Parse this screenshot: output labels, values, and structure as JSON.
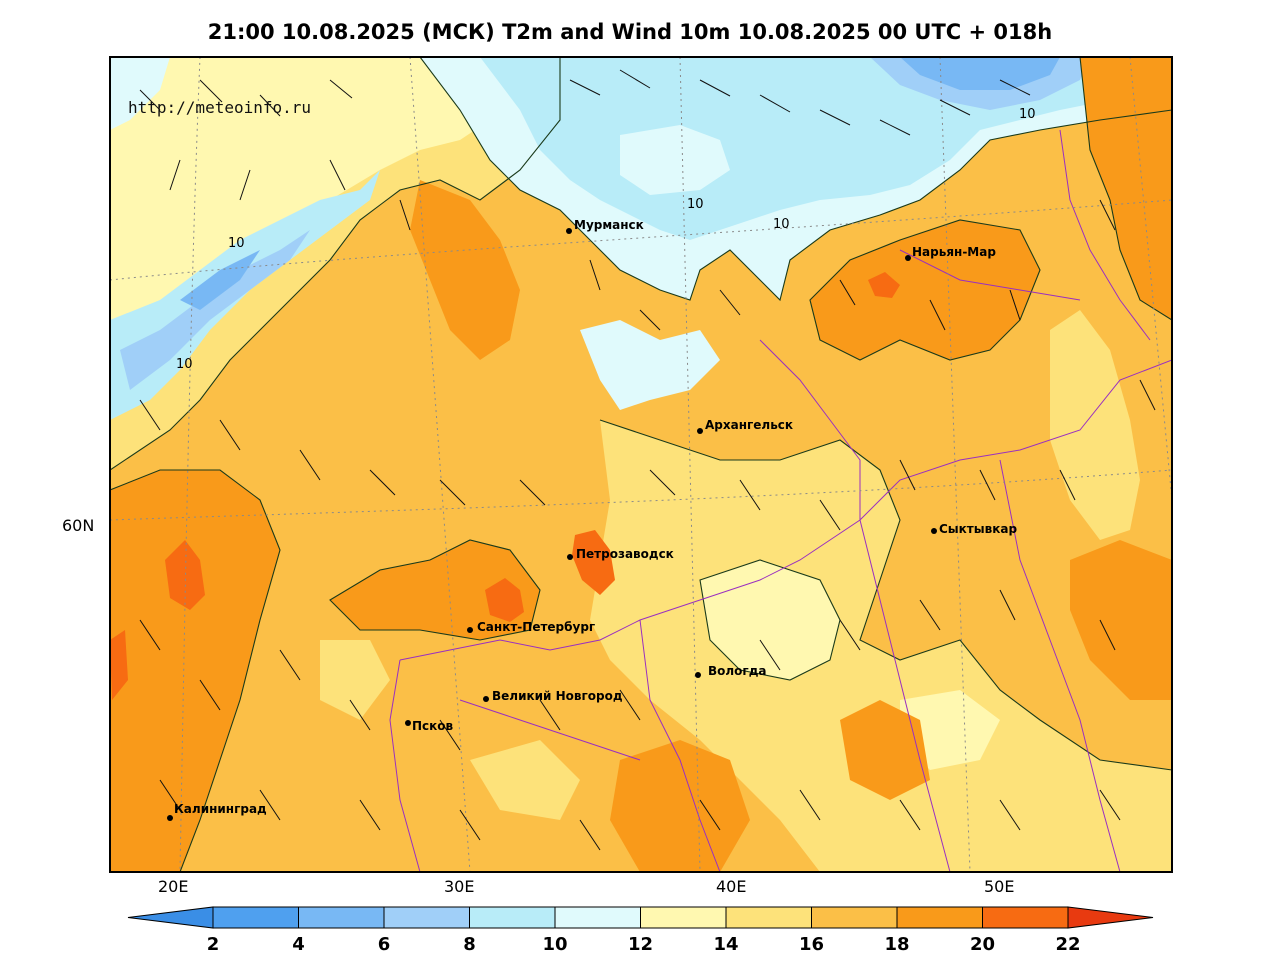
{
  "title": "21:00 10.08.2025 (МСК) T2m and Wind 10m 10.08.2025 00 UTC + 018h",
  "watermark": "http://meteoinfo.ru",
  "axes": {
    "lat_labels": [
      "60N"
    ],
    "lon_labels": [
      "20E",
      "30E",
      "40E",
      "50E"
    ]
  },
  "contour_labels": [
    "10",
    "10",
    "10",
    "10",
    "10"
  ],
  "cities": [
    {
      "name": "Мурманск"
    },
    {
      "name": "Нарьян-Мар"
    },
    {
      "name": "Архангельск"
    },
    {
      "name": "Сыктывкар"
    },
    {
      "name": "Петрозаводск"
    },
    {
      "name": "Санкт-Петербург"
    },
    {
      "name": "Вологда"
    },
    {
      "name": "Великий Новгород"
    },
    {
      "name": "Псков"
    },
    {
      "name": "Калининград"
    }
  ],
  "colorbar": {
    "ticks": [
      "2",
      "4",
      "6",
      "8",
      "10",
      "12",
      "14",
      "16",
      "18",
      "20",
      "22"
    ],
    "colors": [
      "#3a8ee6",
      "#4fa0ef",
      "#78b8f4",
      "#a0cff8",
      "#b8ecf8",
      "#e0fafc",
      "#fff8b0",
      "#fde27a",
      "#fbbf47",
      "#f99a1a",
      "#f76b12",
      "#e83a10"
    ]
  },
  "palette": {
    "t2": "#4fa0ef",
    "t6": "#78b8f4",
    "t8": "#a0cff8",
    "t10": "#b8ecf8",
    "t12": "#e0fafc",
    "t14": "#fff8b0",
    "t16": "#fde27a",
    "t18": "#fbbf47",
    "t20": "#f99a1a",
    "t22": "#f76b12"
  }
}
